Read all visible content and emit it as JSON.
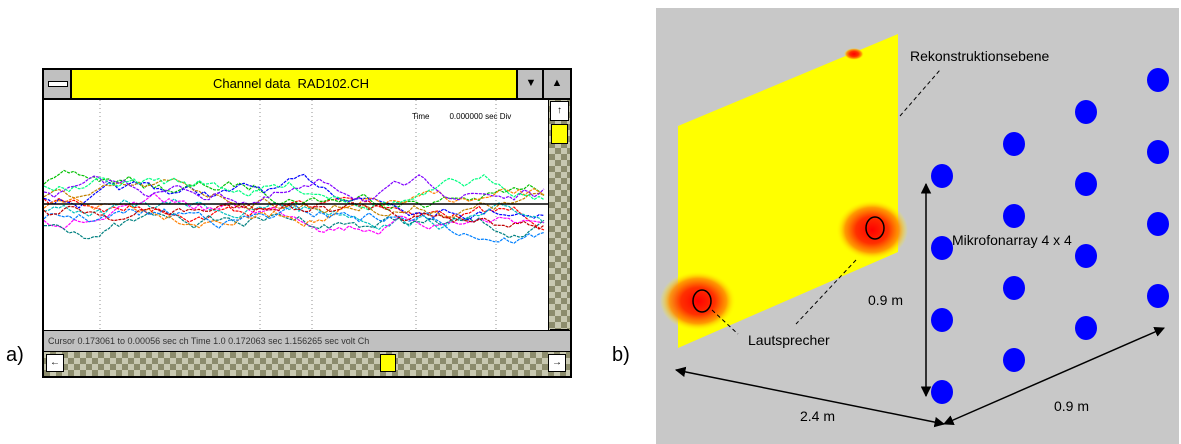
{
  "panel_a": {
    "label": "a)",
    "window": {
      "title": "Channel data  RAD102.CH",
      "time_readout": "Time         0.000000 sec Div",
      "status_text": "Cursor 0.173061 to 0.00056 sec    ch        Time 1.0 0.172063 sec 1.156265 sec volt          Ch",
      "controls": {
        "minimize": "▼",
        "maximize": "▲",
        "scroll_up": "↑",
        "scroll_down": "↓",
        "scroll_left": "←",
        "scroll_right": "→"
      }
    },
    "trace_colors": [
      "#ff0000",
      "#00c000",
      "#0000ff",
      "#00c0c0",
      "#ff00ff",
      "#c08000",
      "#008080",
      "#ff8000",
      "#8000ff",
      "#0080ff",
      "#00ff80",
      "#c00000"
    ],
    "baseline_color": "#000000"
  },
  "panel_b": {
    "label": "b)",
    "labels": {
      "plane": "Rekonstruktionsebene",
      "array": "Mikrofonarray 4 x 4",
      "speaker": "Lautsprecher",
      "height": "0.9 m",
      "width": "0.9 m",
      "distance": "2.4 m"
    },
    "colors": {
      "background": "#c8c8c8",
      "plane": "#ffff00",
      "microphone": "#0000ff",
      "hotspot": "#ff0000"
    }
  }
}
